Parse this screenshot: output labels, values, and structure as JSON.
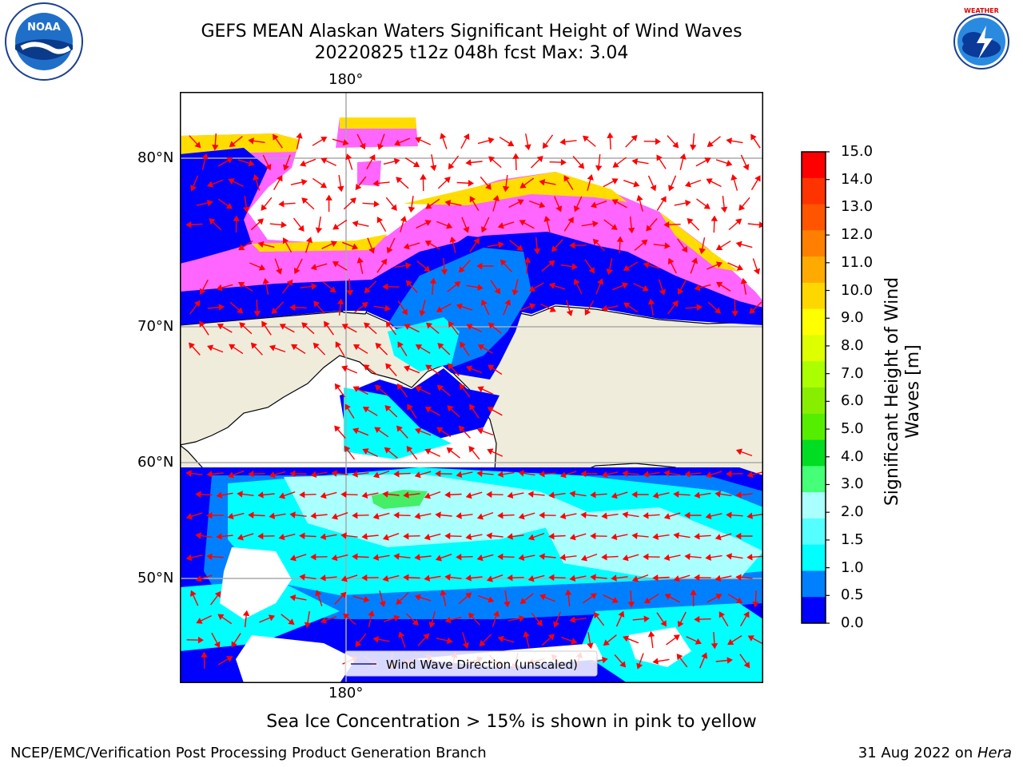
{
  "title": {
    "line1": "GEFS MEAN Alaskan Waters Significant Height of Wind Waves",
    "line2": "20220825 t12z 048h fcst   Max: 3.04"
  },
  "logos": {
    "left": {
      "name": "noaa-logo",
      "text": "NOAA"
    },
    "right": {
      "name": "nws-logo",
      "text": "NATIONAL WEATHER SERVICE"
    }
  },
  "map": {
    "lon_label_top": "180°",
    "lon_label_bottom": "180°",
    "lat_labels": [
      "80°N",
      "70°N",
      "60°N",
      "50°N"
    ],
    "legend_label": "Wind Wave Direction (unscaled)",
    "colors": {
      "land": "#efecdc",
      "deep_blue": "#0000ff",
      "mid_blue": "#0080ff",
      "cyan": "#00ffff",
      "light_cyan": "#aaffff",
      "green": "#44ee66",
      "pink": "#ff66ff",
      "yellow": "#ffdd00",
      "arrow": "#ff0000"
    }
  },
  "colorbar": {
    "title_line1": "Significant Height of Wind",
    "title_line2": "Waves [m]",
    "ticks": [
      "15.0",
      "14.0",
      "13.0",
      "12.0",
      "11.0",
      "10.0",
      "9.0",
      "8.0",
      "7.0",
      "6.0",
      "5.0",
      "4.0",
      "3.0",
      "2.0",
      "1.5",
      "1.0",
      "0.5",
      "0.0"
    ],
    "colors": [
      "#ff0000",
      "#ff3300",
      "#ff5500",
      "#ff8000",
      "#ffaa00",
      "#ffd700",
      "#ffff00",
      "#ddff00",
      "#aaff00",
      "#88ee00",
      "#55ee00",
      "#00dd22",
      "#44ff77",
      "#aaffff",
      "#55ffff",
      "#00ffff",
      "#0080ff",
      "#0000ff"
    ]
  },
  "caption": "Sea Ice Concentration > 15% is shown in pink to yellow",
  "footer": {
    "left": "NCEP/EMC/Verification Post Processing Product Generation Branch",
    "right_date": "31 Aug 2022 on ",
    "right_host": "Hera"
  }
}
